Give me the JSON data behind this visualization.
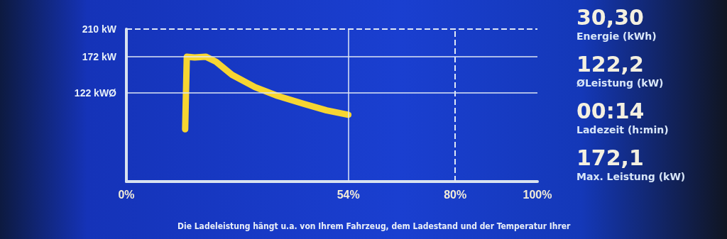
{
  "chart_data": [
    {
      "type": "line",
      "x": [
        14.3,
        14.7,
        16.6,
        19.3,
        21.8,
        25.7,
        31.3,
        36.8,
        43.2,
        48.7,
        54
      ],
      "series": [
        {
          "color": "#f7d531",
          "values": [
            72,
            172,
            171,
            172,
            165,
            147,
            130,
            118,
            107,
            98,
            92
          ]
        }
      ],
      "xlim": [
        0,
        100
      ],
      "ylim": [
        0,
        210
      ],
      "xticks": [
        {
          "value": 0,
          "label": "0%"
        },
        {
          "value": 54,
          "label": "54%"
        },
        {
          "value": 80,
          "label": "80%"
        },
        {
          "value": 100,
          "label": "100%"
        }
      ],
      "yticks": [
        {
          "value": 122,
          "label": "122 kWØ"
        },
        {
          "value": 172,
          "label": "172 kW"
        },
        {
          "value": 210,
          "label": "210 kW"
        }
      ],
      "ref_lines": [
        {
          "axis": "y",
          "value": 210,
          "line_style": "dashed"
        },
        {
          "axis": "y",
          "value": 172,
          "line_style": "solid"
        },
        {
          "axis": "y",
          "value": 122,
          "line_style": "solid"
        },
        {
          "axis": "x",
          "value": 54,
          "line_style": "solid"
        },
        {
          "axis": "x",
          "value": 80,
          "line_style": "dashed"
        }
      ],
      "annotations": [
        "Die Ladeleistung hängt u.a. von Ihrem Fahrzeug, dem Ladestand und der Temperatur Ihrer"
      ],
      "grid": false,
      "marker": "none",
      "line_style": "solid"
    },
    {
      "type": "other",
      "annotations": [
        "30,30",
        "Energie (kWh)",
        "122,2",
        "ØLeistung (kW)",
        "00:14",
        "Ladezeit (h:min)",
        "172,1",
        "Max. Leistung (kW)"
      ]
    }
  ]
}
